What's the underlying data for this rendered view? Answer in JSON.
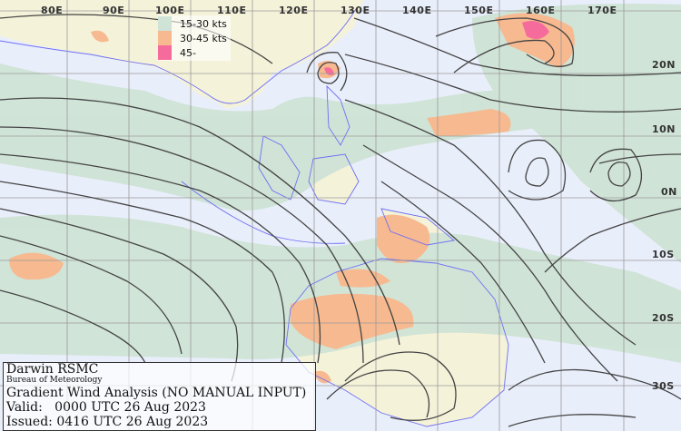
{
  "map": {
    "longitude_labels": [
      "80E",
      "90E",
      "100E",
      "110E",
      "120E",
      "130E",
      "140E",
      "150E",
      "160E",
      "170E"
    ],
    "latitude_labels": [
      "20N",
      "10N",
      "0N",
      "10S",
      "20S",
      "30S"
    ],
    "colors": {
      "ocean": "#e9eefb",
      "land": "#f4f2d9",
      "wind_15_30": "#cfe3d6",
      "wind_30_45": "#f7b98f",
      "wind_45_plus": "#f56c9c",
      "streamline": "#444444",
      "coastline": "#6f6ff5",
      "grid": "#999999"
    }
  },
  "legend": {
    "items": [
      {
        "label": "15-30 kts",
        "color": "#cfe3d6"
      },
      {
        "label": "30-45 kts",
        "color": "#f7b98f"
      },
      {
        "label": "45-",
        "color": "#f56c9c"
      }
    ]
  },
  "info": {
    "centre": "Darwin RSMC",
    "agency": "Bureau of Meteorology",
    "product": "Gradient Wind Analysis (NO MANUAL INPUT)",
    "valid": "Valid:   0000 UTC 26 Aug 2023",
    "issued": "Issued: 0416 UTC 26 Aug 2023"
  }
}
